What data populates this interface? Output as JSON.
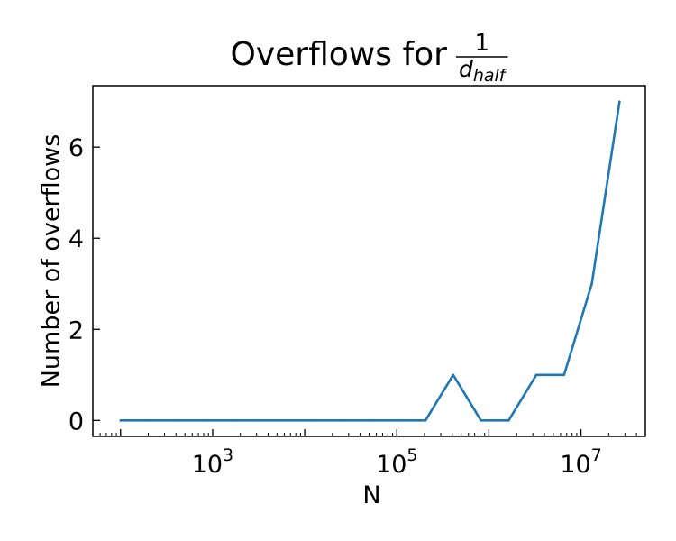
{
  "chart_data": {
    "type": "line",
    "title": {
      "text": "Overflows for",
      "fraction_numerator": "1",
      "fraction_denominator_var": "d",
      "fraction_denominator_sub": "half"
    },
    "xlabel": "N",
    "ylabel": "Number of overflows",
    "xscale": "log",
    "xlim": [
      50,
      50000000
    ],
    "ylim": [
      -0.35,
      7.35
    ],
    "xticks": [
      {
        "value": 1000,
        "base": "10",
        "exp": "3"
      },
      {
        "value": 100000,
        "base": "10",
        "exp": "5"
      },
      {
        "value": 10000000,
        "base": "10",
        "exp": "7"
      }
    ],
    "yticks": [
      {
        "value": 0,
        "label": "0"
      },
      {
        "value": 2,
        "label": "2"
      },
      {
        "value": 4,
        "label": "4"
      },
      {
        "value": 6,
        "label": "6"
      }
    ],
    "grid": false,
    "series": [
      {
        "color": "#1f77b4",
        "x": [
          100,
          200,
          400,
          800,
          1600,
          3200,
          6400,
          12800,
          25600,
          51200,
          102400,
          204800,
          409600,
          819200,
          1638400,
          3276800,
          6553600,
          13107200,
          26214400
        ],
        "y": [
          0,
          0,
          0,
          0,
          0,
          0,
          0,
          0,
          0,
          0,
          0,
          0,
          1,
          0,
          0,
          1,
          1,
          3,
          7
        ]
      }
    ]
  }
}
